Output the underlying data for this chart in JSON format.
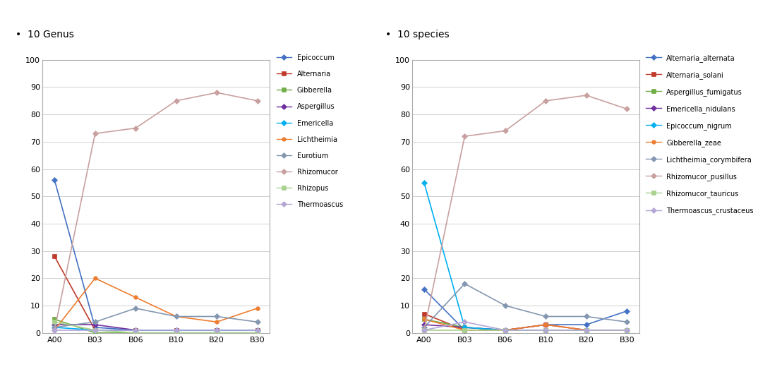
{
  "x_labels": [
    "A00",
    "B03",
    "B06",
    "B10",
    "B20",
    "B30"
  ],
  "title1": "10 Genus",
  "title2": "10 species",
  "genus_series": {
    "Epicoccum": [
      56,
      2,
      1,
      1,
      1,
      1
    ],
    "Alternaria": [
      28,
      1,
      1,
      1,
      1,
      1
    ],
    "Gibberella": [
      5,
      0,
      0,
      0,
      0,
      0
    ],
    "Aspergillus": [
      3,
      3,
      1,
      1,
      1,
      1
    ],
    "Emericella": [
      2,
      1,
      1,
      1,
      1,
      1
    ],
    "Lichtheimia": [
      1,
      20,
      13,
      6,
      4,
      9
    ],
    "Eurotium": [
      2,
      4,
      9,
      6,
      6,
      4
    ],
    "Rhizomucor": [
      1,
      73,
      75,
      85,
      88,
      85
    ],
    "Rhizopus": [
      4,
      1,
      0,
      0,
      0,
      0
    ],
    "Thermoascus": [
      1,
      1,
      1,
      1,
      1,
      1
    ]
  },
  "genus_colors": {
    "Epicoccum": "#4472c4",
    "Alternaria": "#c0392b",
    "Gibberella": "#70ad47",
    "Aspergillus": "#7030a0",
    "Emericella": "#00b0f0",
    "Lichtheimia": "#ed7d31",
    "Eurotium": "#8497b0",
    "Rhizomucor": "#c9a0a0",
    "Rhizopus": "#a9d18e",
    "Thermoascus": "#b4a7d6"
  },
  "genus_markers": {
    "Epicoccum": "D",
    "Alternaria": "s",
    "Gibberella": "s",
    "Aspergillus": "D",
    "Emericella": "D",
    "Lichtheimia": "o",
    "Eurotium": "D",
    "Rhizomucor": "D",
    "Rhizopus": "s",
    "Thermoascus": "D"
  },
  "species_series": {
    "Alternaria_alternata": [
      16,
      1,
      1,
      3,
      3,
      8
    ],
    "Alternaria_solani": [
      7,
      1,
      1,
      3,
      1,
      1
    ],
    "Aspergillus_fumigatus": [
      5,
      2,
      1,
      1,
      1,
      1
    ],
    "Emericella_nidulans": [
      3,
      2,
      1,
      1,
      1,
      1
    ],
    "Epicoccum_nigrum": [
      55,
      2,
      1,
      1,
      1,
      1
    ],
    "Gibberella_zeae": [
      5,
      1,
      1,
      3,
      1,
      1
    ],
    "Lichtheimia_corymbifera": [
      2,
      18,
      10,
      6,
      6,
      4
    ],
    "Rhizomucor_pusillus": [
      1,
      72,
      74,
      85,
      87,
      82
    ],
    "Rhizomucor_tauricus": [
      1,
      1,
      1,
      1,
      1,
      1
    ],
    "Thermoascus_crustaceus": [
      1,
      4,
      1,
      1,
      1,
      1
    ]
  },
  "species_colors": {
    "Alternaria_alternata": "#4472c4",
    "Alternaria_solani": "#c0392b",
    "Aspergillus_fumigatus": "#70ad47",
    "Emericella_nidulans": "#7030a0",
    "Epicoccum_nigrum": "#00b0f0",
    "Gibberella_zeae": "#ed7d31",
    "Lichtheimia_corymbifera": "#8497b0",
    "Rhizomucor_pusillus": "#c9a0a0",
    "Rhizomucor_tauricus": "#a9d18e",
    "Thermoascus_crustaceus": "#b4a7d6"
  },
  "species_markers": {
    "Alternaria_alternata": "D",
    "Alternaria_solani": "s",
    "Aspergillus_fumigatus": "s",
    "Emericella_nidulans": "D",
    "Epicoccum_nigrum": "D",
    "Gibberella_zeae": "o",
    "Lichtheimia_corymbifera": "D",
    "Rhizomucor_pusillus": "D",
    "Rhizomucor_tauricus": "s",
    "Thermoascus_crustaceus": "D"
  },
  "ylim": [
    0,
    100
  ],
  "yticks": [
    0,
    10,
    20,
    30,
    40,
    50,
    60,
    70,
    80,
    90,
    100
  ],
  "bg_color": "#ffffff",
  "plot_bg_color": "#ffffff",
  "grid_color": "#d0d0d0",
  "marker_size": 4,
  "line_width": 1.2
}
